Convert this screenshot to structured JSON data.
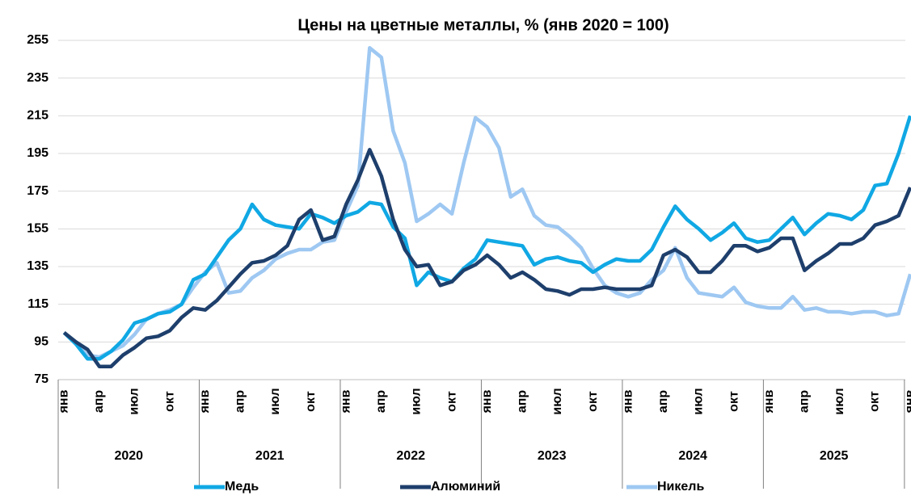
{
  "chart_data": {
    "type": "line",
    "title": "Цены на цветные металлы, % (янв 2020 = 100)",
    "categories": [
      "янв",
      null,
      null,
      "апр",
      null,
      null,
      "июл",
      null,
      null,
      "окт",
      null,
      null,
      "янв",
      null,
      null,
      "апр",
      null,
      null,
      "июл",
      null,
      null,
      "окт",
      null,
      null,
      "янв",
      null,
      null,
      "апр",
      null,
      null,
      "июл",
      null,
      null,
      "окт",
      null,
      null,
      "янв",
      null,
      null,
      "апр",
      null,
      null,
      "июл",
      null,
      null,
      "окт",
      null,
      null,
      "янв",
      null,
      null,
      "апр",
      null,
      null,
      "июл",
      null,
      null,
      "окт",
      null,
      null,
      "янв",
      null,
      null,
      "апр",
      null,
      null,
      "июл",
      null,
      null,
      "окт",
      null,
      null,
      "янв"
    ],
    "year_groups": [
      "2020",
      "2021",
      "2022",
      "2023",
      "2024",
      "2025"
    ],
    "series": [
      {
        "name": "Медь",
        "color": "#10a8e4",
        "values": [
          100,
          94,
          86,
          86,
          90,
          96,
          105,
          107,
          110,
          111,
          115,
          128,
          131,
          140,
          149,
          155,
          168,
          160,
          157,
          156,
          155,
          163,
          161,
          158,
          162,
          164,
          169,
          168,
          156,
          150,
          125,
          132,
          129,
          127,
          134,
          139,
          149,
          148,
          147,
          146,
          136,
          139,
          140,
          138,
          137,
          132,
          136,
          139,
          138,
          138,
          144,
          156,
          167,
          160,
          155,
          149,
          153,
          158,
          150,
          148,
          149,
          155,
          161,
          152,
          158,
          163,
          162,
          160,
          165,
          178,
          179,
          195,
          215
        ]
      },
      {
        "name": "Алюминий",
        "color": "#1e3f6c",
        "values": [
          100,
          95,
          91,
          82,
          82,
          88,
          92,
          97,
          98,
          101,
          108,
          113,
          112,
          117,
          124,
          131,
          137,
          138,
          141,
          146,
          160,
          165,
          149,
          151,
          168,
          181,
          197,
          183,
          160,
          144,
          135,
          136,
          125,
          127,
          133,
          136,
          141,
          136,
          129,
          132,
          128,
          123,
          122,
          120,
          123,
          123,
          124,
          123,
          123,
          123,
          125,
          141,
          144,
          140,
          132,
          132,
          138,
          146,
          146,
          143,
          145,
          150,
          150,
          133,
          138,
          142,
          147,
          147,
          150,
          157,
          159,
          162,
          177
        ]
      },
      {
        "name": "Никель",
        "color": "#9ec8f2",
        "values": [
          100,
          94,
          88,
          87,
          90,
          93,
          99,
          107,
          110,
          112,
          115,
          124,
          132,
          137,
          121,
          122,
          129,
          133,
          139,
          142,
          144,
          144,
          148,
          149,
          164,
          178,
          251,
          246,
          207,
          190,
          159,
          163,
          168,
          163,
          190,
          214,
          209,
          198,
          172,
          176,
          162,
          157,
          156,
          151,
          145,
          134,
          125,
          121,
          119,
          121,
          128,
          133,
          145,
          129,
          121,
          120,
          119,
          124,
          116,
          114,
          113,
          113,
          119,
          112,
          113,
          111,
          111,
          110,
          111,
          111,
          109,
          110,
          131
        ]
      }
    ],
    "ylim": [
      75,
      255
    ],
    "yticks": [
      75,
      95,
      115,
      135,
      155,
      175,
      195,
      215,
      235,
      255
    ],
    "grid": true,
    "legend": "bottom"
  }
}
